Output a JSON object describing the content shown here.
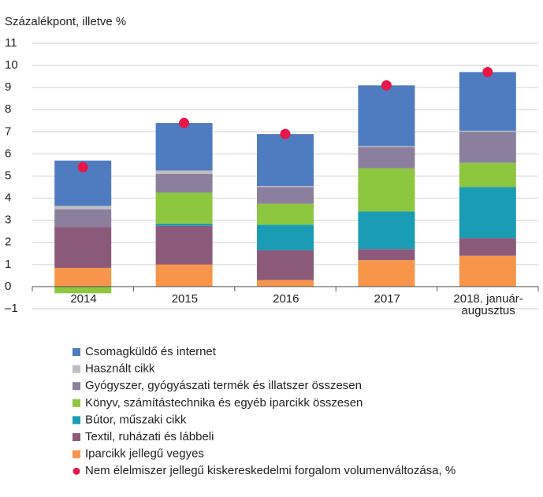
{
  "chart_data": {
    "type": "bar",
    "stacked": true,
    "ylabel": "Százalékpont, illetve %",
    "categories": [
      "2014",
      "2015",
      "2016",
      "2017",
      "2018. január-\naugusztus"
    ],
    "ylim": [
      -1,
      11
    ],
    "yticks": [
      {
        "value": -1,
        "label": "–1"
      },
      0,
      1,
      2,
      3,
      4,
      5,
      6,
      7,
      8,
      9,
      10,
      11
    ],
    "grid": true,
    "series": [
      {
        "name": "Csomagküldő és internet",
        "color": "#4f7cc0",
        "values": [
          2.05,
          2.15,
          2.35,
          2.75,
          2.65
        ]
      },
      {
        "name": "Használt cikk",
        "color": "#bfbfbf",
        "values": [
          0.15,
          0.15,
          0.05,
          0.05,
          0.05
        ]
      },
      {
        "name": "Gyógyszer, gyógyászati termék és illatszer összesen",
        "color": "#8c7f9e",
        "values": [
          0.8,
          0.85,
          0.75,
          0.95,
          1.4
        ]
      },
      {
        "name": "Könyv, számítástechnika és egyéb iparcikk összesen",
        "color": "#8dc63f",
        "values": [
          -0.3,
          1.4,
          0.95,
          1.95,
          1.1
        ]
      },
      {
        "name": "Bútor, műszaki cikk",
        "color": "#1b9cb5",
        "values": [
          0,
          0.1,
          1.15,
          1.7,
          2.3
        ]
      },
      {
        "name": "Textil, ruházati és lábbeli",
        "color": "#8b5a7a",
        "values": [
          1.85,
          1.75,
          1.35,
          0.5,
          0.8
        ]
      },
      {
        "name": "Iparcikk jellegű vegyes",
        "color": "#f7964a",
        "values": [
          0.85,
          1.0,
          0.3,
          1.2,
          1.4
        ]
      },
      {
        "name": "Nem élelmiszer jellegű kiskereskedelmi forgalom volumenváltozása, %",
        "color": "#e8174a",
        "type": "scatter",
        "values": [
          5.4,
          7.4,
          6.9,
          9.1,
          9.7
        ]
      }
    ]
  }
}
